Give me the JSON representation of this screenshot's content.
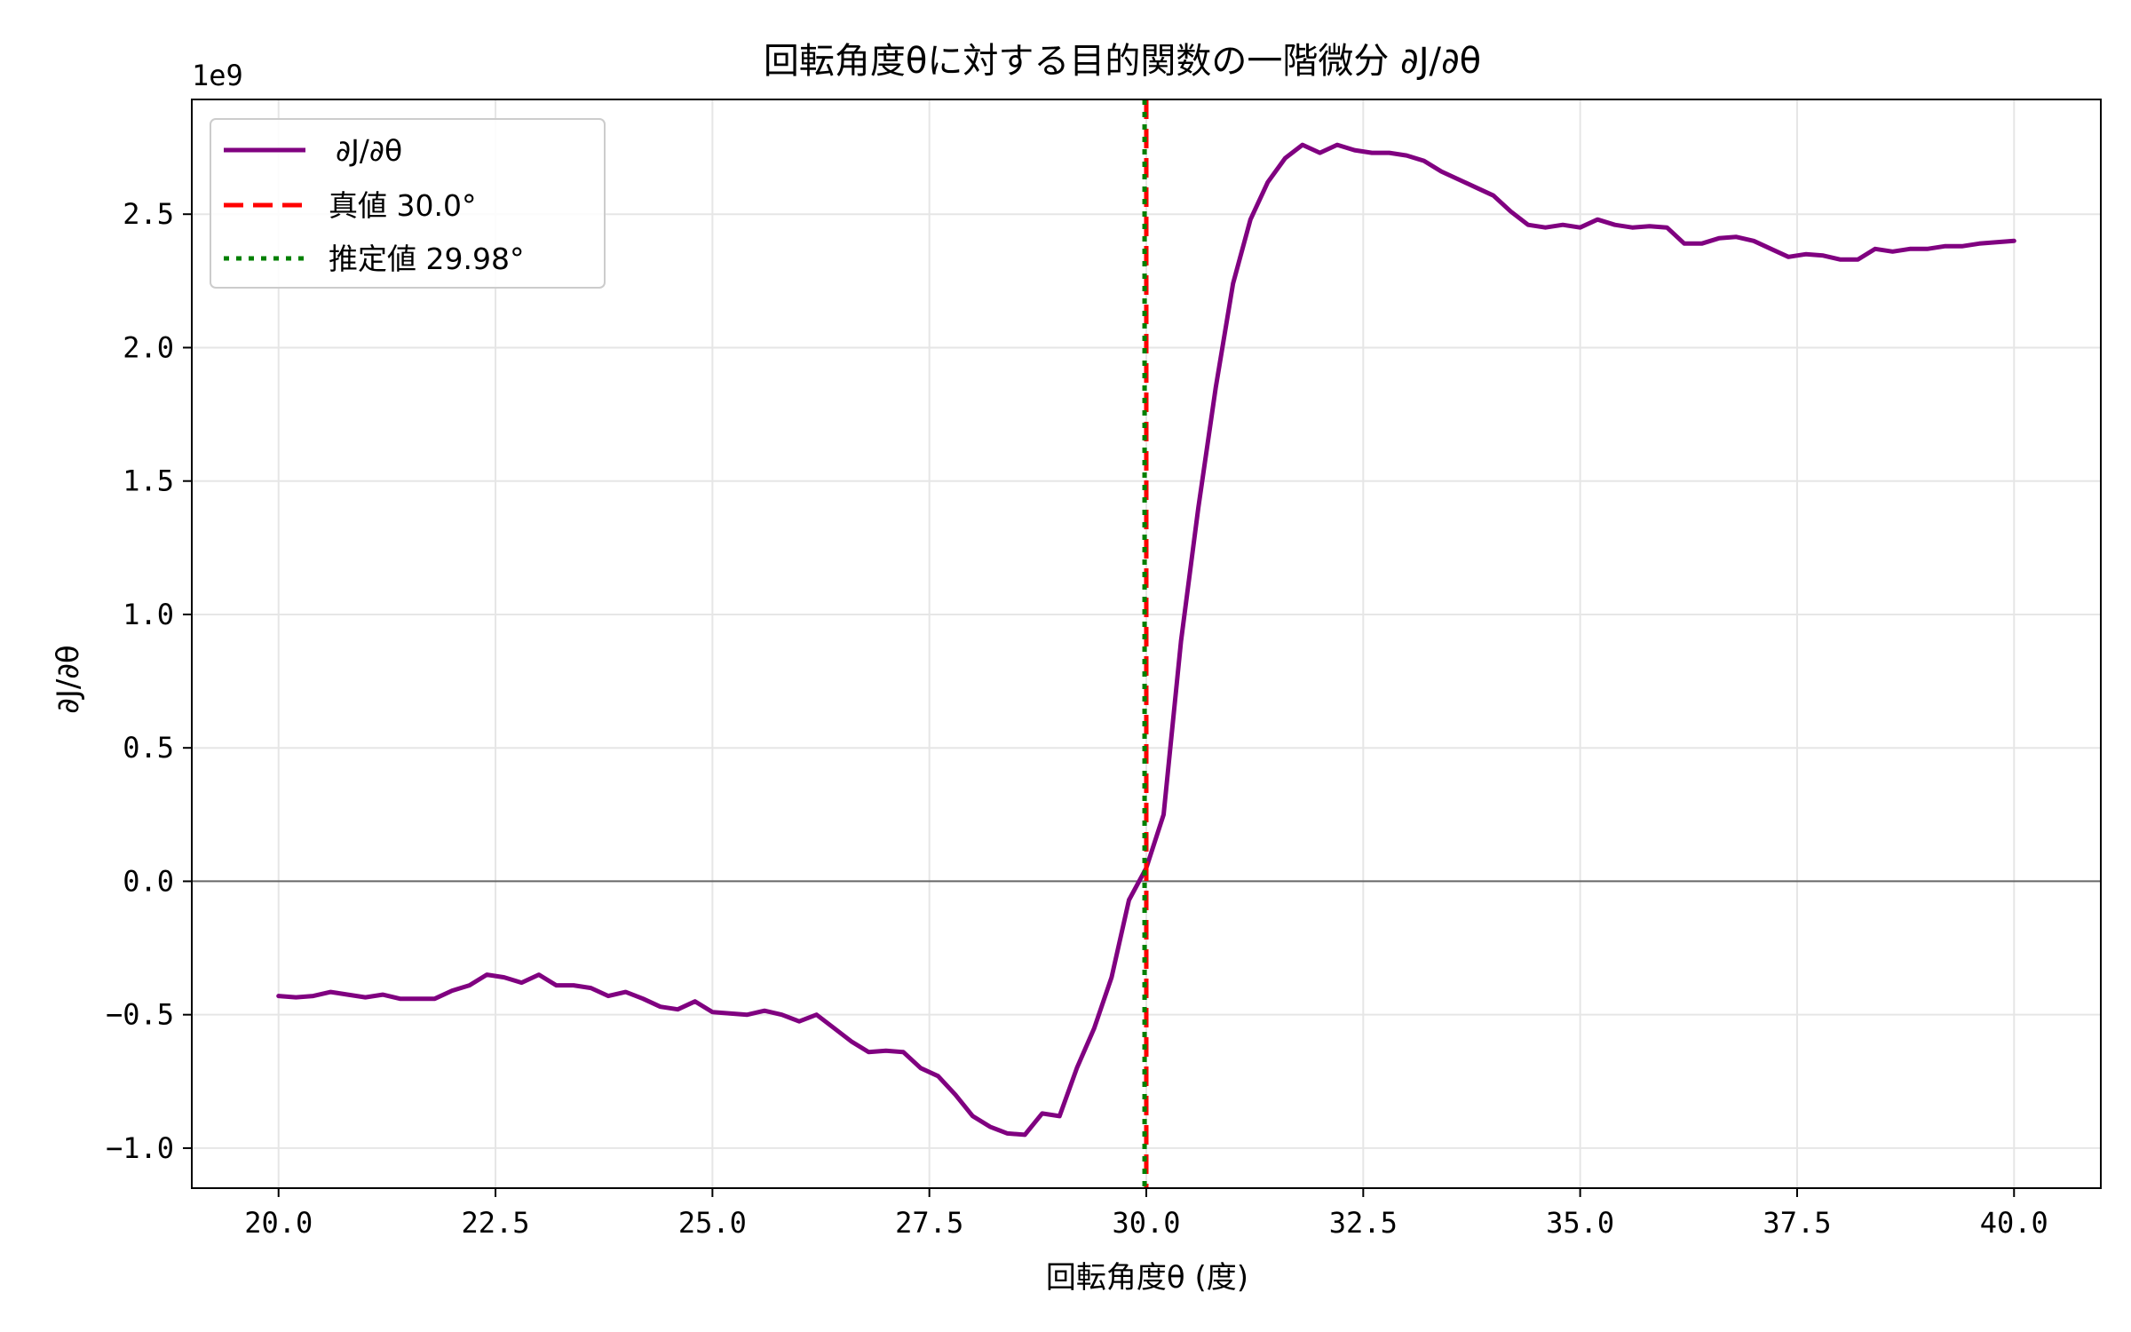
{
  "chart_data": {
    "type": "line",
    "title": "回転角度θに対する目的関数の一階微分 ∂J/∂θ",
    "xlabel": "回転角度θ (度)",
    "ylabel": "∂J/∂θ",
    "y_offset_label": "1e9",
    "xlim": [
      19.0,
      41.0
    ],
    "ylim": [
      -1.15,
      2.93
    ],
    "x_ticks": [
      20.0,
      22.5,
      25.0,
      27.5,
      30.0,
      32.5,
      35.0,
      37.5,
      40.0
    ],
    "x_tick_labels": [
      "20.0",
      "22.5",
      "25.0",
      "27.5",
      "30.0",
      "32.5",
      "35.0",
      "37.5",
      "40.0"
    ],
    "y_ticks": [
      -1.0,
      -0.5,
      0.0,
      0.5,
      1.0,
      1.5,
      2.0,
      2.5
    ],
    "y_tick_labels": [
      "−1.0",
      "−0.5",
      "0.0",
      "0.5",
      "1.0",
      "1.5",
      "2.0",
      "2.5"
    ],
    "grid": true,
    "legend_position": "top-left",
    "series": [
      {
        "name": "∂J/∂θ",
        "color": "#800080",
        "style": "solid",
        "x": [
          20.0,
          20.2,
          20.4,
          20.6,
          20.8,
          21.0,
          21.2,
          21.4,
          21.6,
          21.8,
          22.0,
          22.2,
          22.4,
          22.6,
          22.8,
          23.0,
          23.2,
          23.4,
          23.6,
          23.8,
          24.0,
          24.2,
          24.4,
          24.6,
          24.8,
          25.0,
          25.2,
          25.4,
          25.6,
          25.8,
          26.0,
          26.2,
          26.4,
          26.6,
          26.8,
          27.0,
          27.2,
          27.4,
          27.6,
          27.8,
          28.0,
          28.2,
          28.4,
          28.6,
          28.8,
          29.0,
          29.2,
          29.4,
          29.6,
          29.8,
          30.0,
          30.2,
          30.4,
          30.6,
          30.8,
          31.0,
          31.2,
          31.4,
          31.6,
          31.8,
          32.0,
          32.2,
          32.4,
          32.6,
          32.8,
          33.0,
          33.2,
          33.4,
          33.6,
          33.8,
          34.0,
          34.2,
          34.4,
          34.6,
          34.8,
          35.0,
          35.2,
          35.4,
          35.6,
          35.8,
          36.0,
          36.2,
          36.4,
          36.6,
          36.8,
          37.0,
          37.2,
          37.4,
          37.6,
          37.8,
          38.0,
          38.2,
          38.4,
          38.6,
          38.8,
          39.0,
          39.2,
          39.4,
          39.6,
          39.8,
          40.0
        ],
        "y": [
          -0.43,
          -0.435,
          -0.43,
          -0.415,
          -0.425,
          -0.435,
          -0.425,
          -0.44,
          -0.44,
          -0.44,
          -0.41,
          -0.39,
          -0.35,
          -0.36,
          -0.38,
          -0.35,
          -0.39,
          -0.39,
          -0.4,
          -0.43,
          -0.415,
          -0.44,
          -0.47,
          -0.48,
          -0.45,
          -0.49,
          -0.495,
          -0.5,
          -0.485,
          -0.5,
          -0.525,
          -0.5,
          -0.55,
          -0.6,
          -0.64,
          -0.635,
          -0.64,
          -0.7,
          -0.73,
          -0.8,
          -0.88,
          -0.92,
          -0.945,
          -0.95,
          -0.87,
          -0.88,
          -0.7,
          -0.55,
          -0.36,
          -0.07,
          0.05,
          0.25,
          0.9,
          1.4,
          1.85,
          2.24,
          2.48,
          2.62,
          2.71,
          2.76,
          2.73,
          2.76,
          2.74,
          2.73,
          2.73,
          2.72,
          2.7,
          2.66,
          2.63,
          2.6,
          2.57,
          2.51,
          2.46,
          2.45,
          2.46,
          2.45,
          2.48,
          2.46,
          2.45,
          2.455,
          2.45,
          2.39,
          2.39,
          2.41,
          2.415,
          2.4,
          2.37,
          2.34,
          2.35,
          2.345,
          2.33,
          2.33,
          2.37,
          2.36,
          2.37,
          2.37,
          2.38,
          2.38,
          2.39,
          2.395,
          2.4
        ]
      }
    ],
    "vertical_lines": [
      {
        "name": "真値 30.0°",
        "x": 30.0,
        "color": "#ff0000",
        "style": "dashed"
      },
      {
        "name": "推定値 29.98°",
        "x": 29.98,
        "color": "#008000",
        "style": "dotted"
      }
    ],
    "horizontal_lines": [
      {
        "y": 0.0,
        "color": "#000000",
        "style": "solid"
      }
    ]
  }
}
